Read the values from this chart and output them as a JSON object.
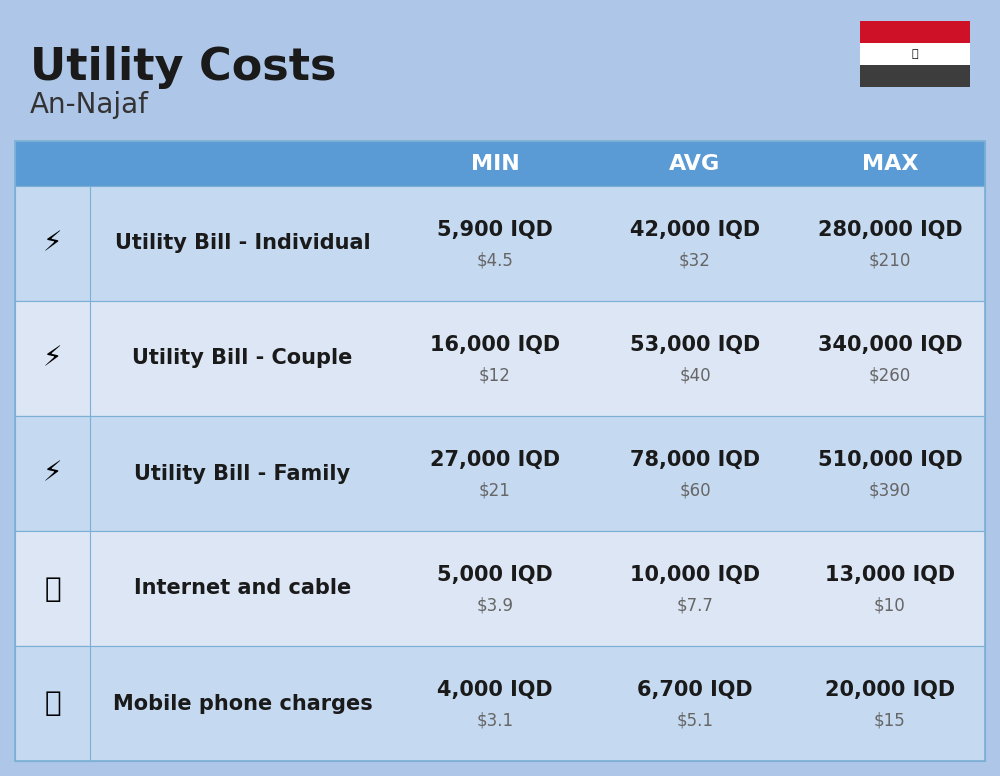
{
  "title": "Utility Costs",
  "subtitle": "An-Najaf",
  "background_color": "#aec6e8",
  "header_bg_color": "#5b9bd5",
  "header_text_color": "#ffffff",
  "row_bg_color_1": "#c5d9f1",
  "row_bg_color_2": "#dce6f5",
  "cell_border_color": "#7bafd4",
  "col_headers": [
    "MIN",
    "AVG",
    "MAX"
  ],
  "rows": [
    {
      "label": "Utility Bill - Individual",
      "min_iqd": "5,900 IQD",
      "min_usd": "$4.5",
      "avg_iqd": "42,000 IQD",
      "avg_usd": "$32",
      "max_iqd": "280,000 IQD",
      "max_usd": "$210"
    },
    {
      "label": "Utility Bill - Couple",
      "min_iqd": "16,000 IQD",
      "min_usd": "$12",
      "avg_iqd": "53,000 IQD",
      "avg_usd": "$40",
      "max_iqd": "340,000 IQD",
      "max_usd": "$260"
    },
    {
      "label": "Utility Bill - Family",
      "min_iqd": "27,000 IQD",
      "min_usd": "$21",
      "avg_iqd": "78,000 IQD",
      "avg_usd": "$60",
      "max_iqd": "510,000 IQD",
      "max_usd": "$390"
    },
    {
      "label": "Internet and cable",
      "min_iqd": "5,000 IQD",
      "min_usd": "$3.9",
      "avg_iqd": "10,000 IQD",
      "avg_usd": "$7.7",
      "max_iqd": "13,000 IQD",
      "max_usd": "$10"
    },
    {
      "label": "Mobile phone charges",
      "min_iqd": "4,000 IQD",
      "min_usd": "$3.1",
      "avg_iqd": "6,700 IQD",
      "avg_usd": "$5.1",
      "max_iqd": "20,000 IQD",
      "max_usd": "$15"
    }
  ],
  "title_fontsize": 32,
  "subtitle_fontsize": 20,
  "header_fontsize": 16,
  "label_fontsize": 15,
  "value_fontsize": 15,
  "usd_fontsize": 12,
  "flag_colors": [
    "#ce1126",
    "#ffffff",
    "#007a3d",
    "#000000"
  ],
  "icon_emojis": [
    "⚡",
    "⚡",
    "⚡",
    "📶",
    "📱"
  ]
}
